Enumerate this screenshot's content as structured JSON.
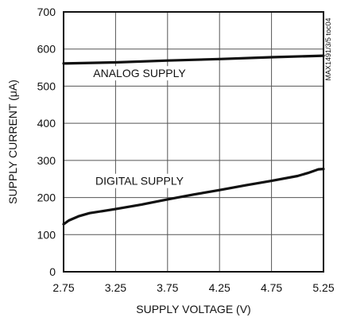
{
  "chart_data": {
    "type": "line",
    "title": "",
    "xlabel": "SUPPLY VOLTAGE (V)",
    "ylabel": "SUPPLY CURRENT (μA)",
    "xlim": [
      2.75,
      5.25
    ],
    "ylim": [
      0,
      700
    ],
    "xticks": [
      2.75,
      3.25,
      3.75,
      4.25,
      4.75,
      5.25
    ],
    "xtick_labels": [
      "2.75",
      "3.25",
      "3.75",
      "4.25",
      "4.75",
      "5.25"
    ],
    "yticks": [
      0,
      100,
      200,
      300,
      400,
      500,
      600,
      700
    ],
    "ytick_labels": [
      "0",
      "100",
      "200",
      "300",
      "400",
      "500",
      "600",
      "700"
    ],
    "grid": true,
    "side_label": "MAX1491/3/5 toc04",
    "series": [
      {
        "name": "ANALOG SUPPLY",
        "color": "#111111",
        "x": [
          2.75,
          3.25,
          3.75,
          4.25,
          4.75,
          5.25
        ],
        "y": [
          561,
          564,
          569,
          573,
          578,
          582
        ]
      },
      {
        "name": "DIGITAL SUPPLY",
        "color": "#111111",
        "x": [
          2.75,
          2.8,
          2.9,
          3.0,
          3.25,
          3.5,
          3.75,
          4.0,
          4.25,
          4.5,
          4.75,
          5.0,
          5.1,
          5.2,
          5.25
        ],
        "y": [
          128,
          138,
          150,
          158,
          169,
          181,
          195,
          208,
          220,
          233,
          245,
          258,
          266,
          276,
          277
        ]
      }
    ]
  }
}
